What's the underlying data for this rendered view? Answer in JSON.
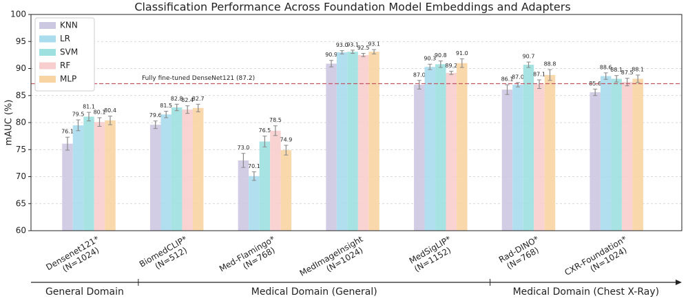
{
  "chart_data": {
    "type": "bar",
    "title": "Classification Performance Across Foundation Model Embeddings and Adapters",
    "y_label": "mAUC (%)",
    "categories": [
      "Densenet121*",
      "BiomedCLIP*",
      "Med-Flamingo*",
      "MedImageInsight",
      "MedSigLIP*",
      "Rad-DINO*",
      "CXR-Foundation*"
    ],
    "category_sizes": [
      "(N=1024)",
      "(N=512)",
      "(N=768)",
      "(N=1024)",
      "(N=1152)",
      "(N=768)",
      "(N=1024)"
    ],
    "series": [
      {
        "name": "KNN",
        "color": "#cdc8e2",
        "values": [
          76.1,
          79.6,
          73.0,
          90.9,
          87.0,
          86.1,
          85.6
        ],
        "value_labels": [
          "76.1",
          "79.6",
          "73.0",
          "90.9",
          "87.0",
          "86.1",
          "85.6"
        ],
        "errors": [
          1.2,
          0.7,
          1.3,
          0.6,
          0.8,
          0.9,
          0.6
        ]
      },
      {
        "name": "LR",
        "color": "#a9dced",
        "values": [
          79.5,
          81.5,
          70.1,
          93.0,
          90.3,
          87.0,
          88.6
        ],
        "value_labels": [
          "79.5",
          "81.5",
          "70.1",
          "93.0",
          "90.3",
          "87.0",
          "88.6"
        ],
        "errors": [
          1.0,
          0.6,
          0.8,
          0.3,
          0.5,
          0.4,
          0.6
        ]
      },
      {
        "name": "SVM",
        "color": "#9ee0e0",
        "values": [
          81.1,
          82.8,
          76.5,
          93.1,
          90.8,
          90.7,
          88.1
        ],
        "value_labels": [
          "81.1",
          "82.8",
          "76.5",
          "93.1",
          "90.8",
          "90.7",
          "88.1"
        ],
        "errors": [
          0.8,
          0.6,
          1.0,
          0.3,
          0.6,
          0.5,
          0.6
        ]
      },
      {
        "name": "RF",
        "color": "#f8cdcd",
        "values": [
          80.1,
          82.4,
          78.5,
          92.5,
          89.2,
          87.1,
          87.5
        ],
        "value_labels": [
          "80.1",
          "82.4",
          "78.5",
          "92.5",
          "89.2",
          "87.1",
          "87.5"
        ],
        "errors": [
          0.8,
          0.7,
          0.9,
          0.3,
          0.3,
          0.8,
          0.7
        ]
      },
      {
        "name": "MLP",
        "color": "#f8d4a2",
        "values": [
          80.4,
          82.7,
          74.9,
          93.1,
          91.0,
          88.8,
          88.1
        ],
        "value_labels": [
          "80.4",
          "82.7",
          "74.9",
          "93.1",
          "91.0",
          "88.8",
          "88.1"
        ],
        "errors": [
          0.8,
          0.7,
          0.9,
          0.4,
          0.8,
          1.0,
          0.7
        ]
      }
    ],
    "reference_line": {
      "value": 87.2,
      "label": "Fully fine-tuned DenseNet121 (87.2)",
      "color": "#c05561"
    },
    "domains": [
      "General Domain",
      "Medical Domain (General)",
      "Medical Domain (Chest X-Ray)"
    ],
    "ylim": [
      60,
      100
    ],
    "yticks": [
      60,
      65,
      70,
      75,
      80,
      85,
      90,
      95,
      100
    ],
    "yticks_suffix_note": null,
    "grid": true,
    "legend": "upper left"
  }
}
